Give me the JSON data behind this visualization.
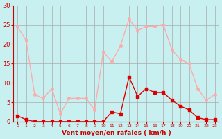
{
  "x": [
    0,
    1,
    2,
    3,
    4,
    5,
    6,
    7,
    8,
    9,
    10,
    11,
    12,
    13,
    14,
    15,
    16,
    17,
    18,
    19,
    20,
    21,
    22,
    23
  ],
  "rafales": [
    24.5,
    21,
    7,
    6,
    8.5,
    2,
    6,
    6,
    6,
    3,
    18,
    15.5,
    19.5,
    26.5,
    23.5,
    24.5,
    24.5,
    25,
    18.5,
    16,
    15,
    8.5,
    5.5,
    7
  ],
  "vent_moyen": [
    1.5,
    0.5,
    0,
    0,
    0,
    0,
    0,
    0,
    0,
    0,
    0,
    2.5,
    2,
    11.5,
    6.5,
    8.5,
    7.5,
    7.5,
    5.5,
    4,
    3,
    1,
    0.5,
    0.5
  ],
  "xlabel": "Vent moyen/en rafales ( km/h )",
  "ylabel": "",
  "ylim": [
    0,
    30
  ],
  "xlim": [
    0,
    23
  ],
  "yticks": [
    0,
    5,
    10,
    15,
    20,
    25,
    30
  ],
  "bg_color": "#c8f0f0",
  "grid_color": "#aaaaaa",
  "line_color_rafales": "#ffaaaa",
  "line_color_vent": "#dd0000",
  "marker_color_rafales": "#ffaaaa",
  "marker_color_vent": "#dd0000"
}
